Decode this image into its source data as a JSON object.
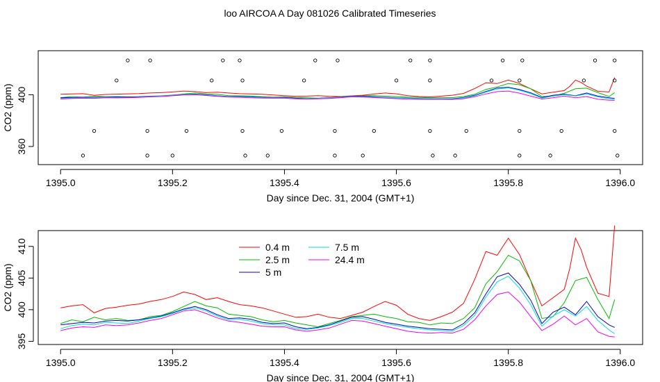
{
  "title": "loo AIRCOA A  Day 081026  Calibrated Timeseries",
  "chart_data": [
    {
      "type": "line",
      "panel": "top",
      "xlabel": "Day since Dec. 31, 2004 (GMT+1)",
      "ylabel": "CO2 (ppm)",
      "xlim": [
        1394.96,
        1396.04
      ],
      "ylim": [
        346,
        434
      ],
      "x_ticks": [
        "1395.0",
        "1395.2",
        "1395.4",
        "1395.6",
        "1395.8",
        "1396.0"
      ],
      "y_ticks": [
        "360",
        "400"
      ],
      "x_tick_values": [
        1395.0,
        1395.2,
        1395.4,
        1395.6,
        1395.8,
        1396.0
      ],
      "y_tick_values": [
        360,
        400
      ],
      "grid": false,
      "legend": "none",
      "marker_points": [
        [
          1395.12,
          426.5
        ],
        [
          1395.16,
          426.5
        ],
        [
          1395.29,
          426.5
        ],
        [
          1395.32,
          426.5
        ],
        [
          1395.455,
          426.5
        ],
        [
          1395.495,
          426.5
        ],
        [
          1395.625,
          426.5
        ],
        [
          1395.66,
          426.5
        ],
        [
          1395.79,
          426.5
        ],
        [
          1395.825,
          426.5
        ],
        [
          1395.955,
          426.5
        ],
        [
          1395.99,
          426.5
        ],
        [
          1395.1,
          411
        ],
        [
          1395.27,
          411
        ],
        [
          1395.325,
          411
        ],
        [
          1395.435,
          411
        ],
        [
          1395.6,
          411
        ],
        [
          1395.66,
          411
        ],
        [
          1395.77,
          411
        ],
        [
          1395.82,
          411
        ],
        [
          1395.935,
          411
        ],
        [
          1395.99,
          411
        ],
        [
          1395.06,
          372
        ],
        [
          1395.155,
          372
        ],
        [
          1395.225,
          372
        ],
        [
          1395.325,
          372
        ],
        [
          1395.395,
          372
        ],
        [
          1395.49,
          372
        ],
        [
          1395.56,
          372
        ],
        [
          1395.66,
          372
        ],
        [
          1395.725,
          372
        ],
        [
          1395.82,
          372
        ],
        [
          1395.895,
          372
        ],
        [
          1395.99,
          372
        ],
        [
          1395.04,
          353
        ],
        [
          1395.155,
          353
        ],
        [
          1395.2,
          353
        ],
        [
          1395.33,
          353
        ],
        [
          1395.37,
          353
        ],
        [
          1395.49,
          353
        ],
        [
          1395.54,
          353
        ],
        [
          1395.665,
          353
        ],
        [
          1395.705,
          353
        ],
        [
          1395.82,
          353
        ],
        [
          1395.875,
          353
        ],
        [
          1395.995,
          353
        ]
      ]
    },
    {
      "type": "line",
      "panel": "bottom",
      "xlabel": "Day since Dec. 31, 2004 (GMT+1)",
      "ylabel": "CO2 (ppm)",
      "xlim": [
        1394.96,
        1396.04
      ],
      "ylim": [
        394.5,
        412.5
      ],
      "x_ticks": [
        "1395.0",
        "1395.2",
        "1395.4",
        "1395.6",
        "1395.8",
        "1396.0"
      ],
      "y_ticks": [
        "395",
        "400",
        "405",
        "410"
      ],
      "x_tick_values": [
        1395.0,
        1395.2,
        1395.4,
        1395.6,
        1395.8,
        1396.0
      ],
      "y_tick_values": [
        395,
        400,
        405,
        410
      ],
      "grid": false,
      "legend": "top-left",
      "series": [
        {
          "name": "0.4 m",
          "color": "#ff0000",
          "x": [
            1395.0,
            1395.02,
            1395.04,
            1395.06,
            1395.08,
            1395.1,
            1395.12,
            1395.14,
            1395.16,
            1395.18,
            1395.2,
            1395.22,
            1395.24,
            1395.26,
            1395.28,
            1395.3,
            1395.32,
            1395.34,
            1395.36,
            1395.38,
            1395.4,
            1395.42,
            1395.44,
            1395.46,
            1395.48,
            1395.5,
            1395.52,
            1395.54,
            1395.56,
            1395.58,
            1395.6,
            1395.62,
            1395.64,
            1395.66,
            1395.68,
            1395.7,
            1395.72,
            1395.74,
            1395.76,
            1395.78,
            1395.8,
            1395.82,
            1395.84,
            1395.86,
            1395.88,
            1395.9,
            1395.91,
            1395.92,
            1395.93,
            1395.94,
            1395.96,
            1395.98,
            1395.99
          ],
          "y": [
            400.3,
            400.6,
            400.8,
            399.5,
            400.2,
            400.4,
            400.7,
            400.9,
            401.3,
            401.6,
            402.1,
            402.8,
            402.4,
            401.6,
            401.9,
            401.3,
            400.8,
            400.6,
            400.3,
            399.8,
            399.3,
            398.8,
            398.9,
            399.3,
            398.8,
            398.6,
            399.1,
            399.6,
            400.5,
            401.3,
            400.7,
            399.3,
            398.6,
            398.3,
            398.9,
            399.6,
            401.0,
            404.8,
            409.2,
            408.6,
            411.3,
            408.7,
            404.6,
            400.6,
            401.9,
            403.2,
            406.6,
            411.3,
            409.5,
            406.7,
            402.6,
            402.1,
            413.3
          ]
        },
        {
          "name": "2.5 m",
          "color": "#00bb00",
          "x": [
            1395.0,
            1395.02,
            1395.04,
            1395.06,
            1395.08,
            1395.1,
            1395.12,
            1395.14,
            1395.16,
            1395.18,
            1395.2,
            1395.22,
            1395.24,
            1395.26,
            1395.28,
            1395.3,
            1395.32,
            1395.34,
            1395.36,
            1395.38,
            1395.4,
            1395.42,
            1395.44,
            1395.46,
            1395.48,
            1395.5,
            1395.52,
            1395.54,
            1395.56,
            1395.58,
            1395.6,
            1395.62,
            1395.64,
            1395.66,
            1395.68,
            1395.7,
            1395.72,
            1395.74,
            1395.76,
            1395.78,
            1395.8,
            1395.82,
            1395.84,
            1395.86,
            1395.88,
            1395.9,
            1395.92,
            1395.94,
            1395.96,
            1395.98,
            1395.99
          ],
          "y": [
            397.8,
            398.4,
            398.1,
            398.8,
            398.4,
            398.6,
            398.3,
            398.4,
            398.9,
            399.1,
            399.7,
            400.5,
            401.3,
            400.6,
            400.3,
            399.3,
            399.1,
            398.9,
            398.4,
            398.1,
            398.3,
            397.9,
            397.6,
            397.3,
            397.8,
            398.3,
            398.9,
            399.1,
            399.3,
            398.9,
            398.6,
            398.1,
            398.0,
            397.6,
            397.9,
            397.8,
            398.6,
            400.3,
            404.1,
            406.0,
            408.6,
            407.7,
            404.6,
            398.6,
            398.9,
            401.1,
            404.6,
            405.1,
            401.6,
            398.6,
            401.6
          ]
        },
        {
          "name": "5 m",
          "color": "#0000cc",
          "x": [
            1395.0,
            1395.02,
            1395.04,
            1395.06,
            1395.08,
            1395.1,
            1395.12,
            1395.14,
            1395.16,
            1395.18,
            1395.2,
            1395.22,
            1395.24,
            1395.26,
            1395.28,
            1395.3,
            1395.32,
            1395.34,
            1395.36,
            1395.38,
            1395.4,
            1395.42,
            1395.44,
            1395.46,
            1395.48,
            1395.5,
            1395.52,
            1395.54,
            1395.56,
            1395.58,
            1395.6,
            1395.62,
            1395.64,
            1395.66,
            1395.68,
            1395.7,
            1395.72,
            1395.74,
            1395.76,
            1395.78,
            1395.8,
            1395.82,
            1395.84,
            1395.86,
            1395.88,
            1395.9,
            1395.92,
            1395.94,
            1395.96,
            1395.98,
            1395.99
          ],
          "y": [
            397.6,
            397.8,
            398.0,
            397.9,
            398.2,
            398.3,
            398.2,
            398.4,
            398.7,
            399.0,
            399.5,
            400.1,
            400.5,
            400.0,
            399.2,
            398.6,
            398.7,
            398.5,
            398.0,
            397.8,
            397.9,
            397.3,
            397.0,
            397.2,
            397.6,
            398.2,
            398.8,
            398.9,
            398.5,
            398.0,
            397.7,
            397.4,
            397.2,
            397.0,
            396.9,
            396.8,
            397.8,
            399.5,
            402.5,
            405.2,
            405.8,
            404.0,
            401.5,
            397.8,
            399.6,
            400.4,
            399.2,
            401.3,
            398.9,
            397.6,
            397.2
          ]
        },
        {
          "name": "7.5 m",
          "color": "#00dddd",
          "x": [
            1395.0,
            1395.02,
            1395.04,
            1395.06,
            1395.08,
            1395.1,
            1395.12,
            1395.14,
            1395.16,
            1395.18,
            1395.2,
            1395.22,
            1395.24,
            1395.26,
            1395.28,
            1395.3,
            1395.32,
            1395.34,
            1395.36,
            1395.38,
            1395.4,
            1395.42,
            1395.44,
            1395.46,
            1395.48,
            1395.5,
            1395.52,
            1395.54,
            1395.56,
            1395.58,
            1395.6,
            1395.62,
            1395.64,
            1395.66,
            1395.68,
            1395.7,
            1395.72,
            1395.74,
            1395.76,
            1395.78,
            1395.8,
            1395.82,
            1395.84,
            1395.86,
            1395.88,
            1395.9,
            1395.92,
            1395.94,
            1395.96,
            1395.98,
            1395.99
          ],
          "y": [
            397.0,
            397.5,
            397.7,
            397.6,
            398.0,
            397.9,
            397.8,
            398.2,
            398.6,
            398.9,
            399.4,
            400.0,
            400.3,
            399.8,
            399.0,
            398.4,
            398.5,
            398.2,
            397.8,
            397.6,
            397.6,
            397.0,
            396.9,
            397.1,
            397.5,
            398.0,
            398.6,
            398.6,
            398.2,
            397.8,
            397.5,
            397.2,
            397.0,
            396.8,
            396.7,
            396.6,
            397.5,
            399.1,
            402.0,
            404.4,
            405.3,
            403.4,
            400.8,
            397.4,
            399.0,
            400.0,
            399.0,
            400.5,
            398.3,
            396.8,
            396.2
          ]
        },
        {
          "name": "24.4 m",
          "color": "#ee00ee",
          "x": [
            1395.0,
            1395.02,
            1395.04,
            1395.06,
            1395.08,
            1395.1,
            1395.12,
            1395.14,
            1395.16,
            1395.18,
            1395.2,
            1395.22,
            1395.24,
            1395.26,
            1395.28,
            1395.3,
            1395.32,
            1395.34,
            1395.36,
            1395.38,
            1395.4,
            1395.42,
            1395.44,
            1395.46,
            1395.48,
            1395.5,
            1395.52,
            1395.54,
            1395.56,
            1395.58,
            1395.6,
            1395.62,
            1395.64,
            1395.66,
            1395.68,
            1395.7,
            1395.72,
            1395.74,
            1395.76,
            1395.78,
            1395.8,
            1395.82,
            1395.84,
            1395.86,
            1395.88,
            1395.9,
            1395.92,
            1395.94,
            1395.96,
            1395.98,
            1395.99
          ],
          "y": [
            396.7,
            397.1,
            397.3,
            397.2,
            397.6,
            397.5,
            397.6,
            397.9,
            398.3,
            398.6,
            399.2,
            399.8,
            400.0,
            399.4,
            398.7,
            398.2,
            398.0,
            397.7,
            397.4,
            397.3,
            397.3,
            396.8,
            396.6,
            396.8,
            397.1,
            397.7,
            398.3,
            398.2,
            397.8,
            397.4,
            397.0,
            396.6,
            396.4,
            396.3,
            396.4,
            396.3,
            396.9,
            398.4,
            400.6,
            402.4,
            402.8,
            401.2,
            398.9,
            396.7,
            397.7,
            399.0,
            397.6,
            398.6,
            396.5,
            395.8,
            395.7
          ]
        }
      ]
    }
  ]
}
